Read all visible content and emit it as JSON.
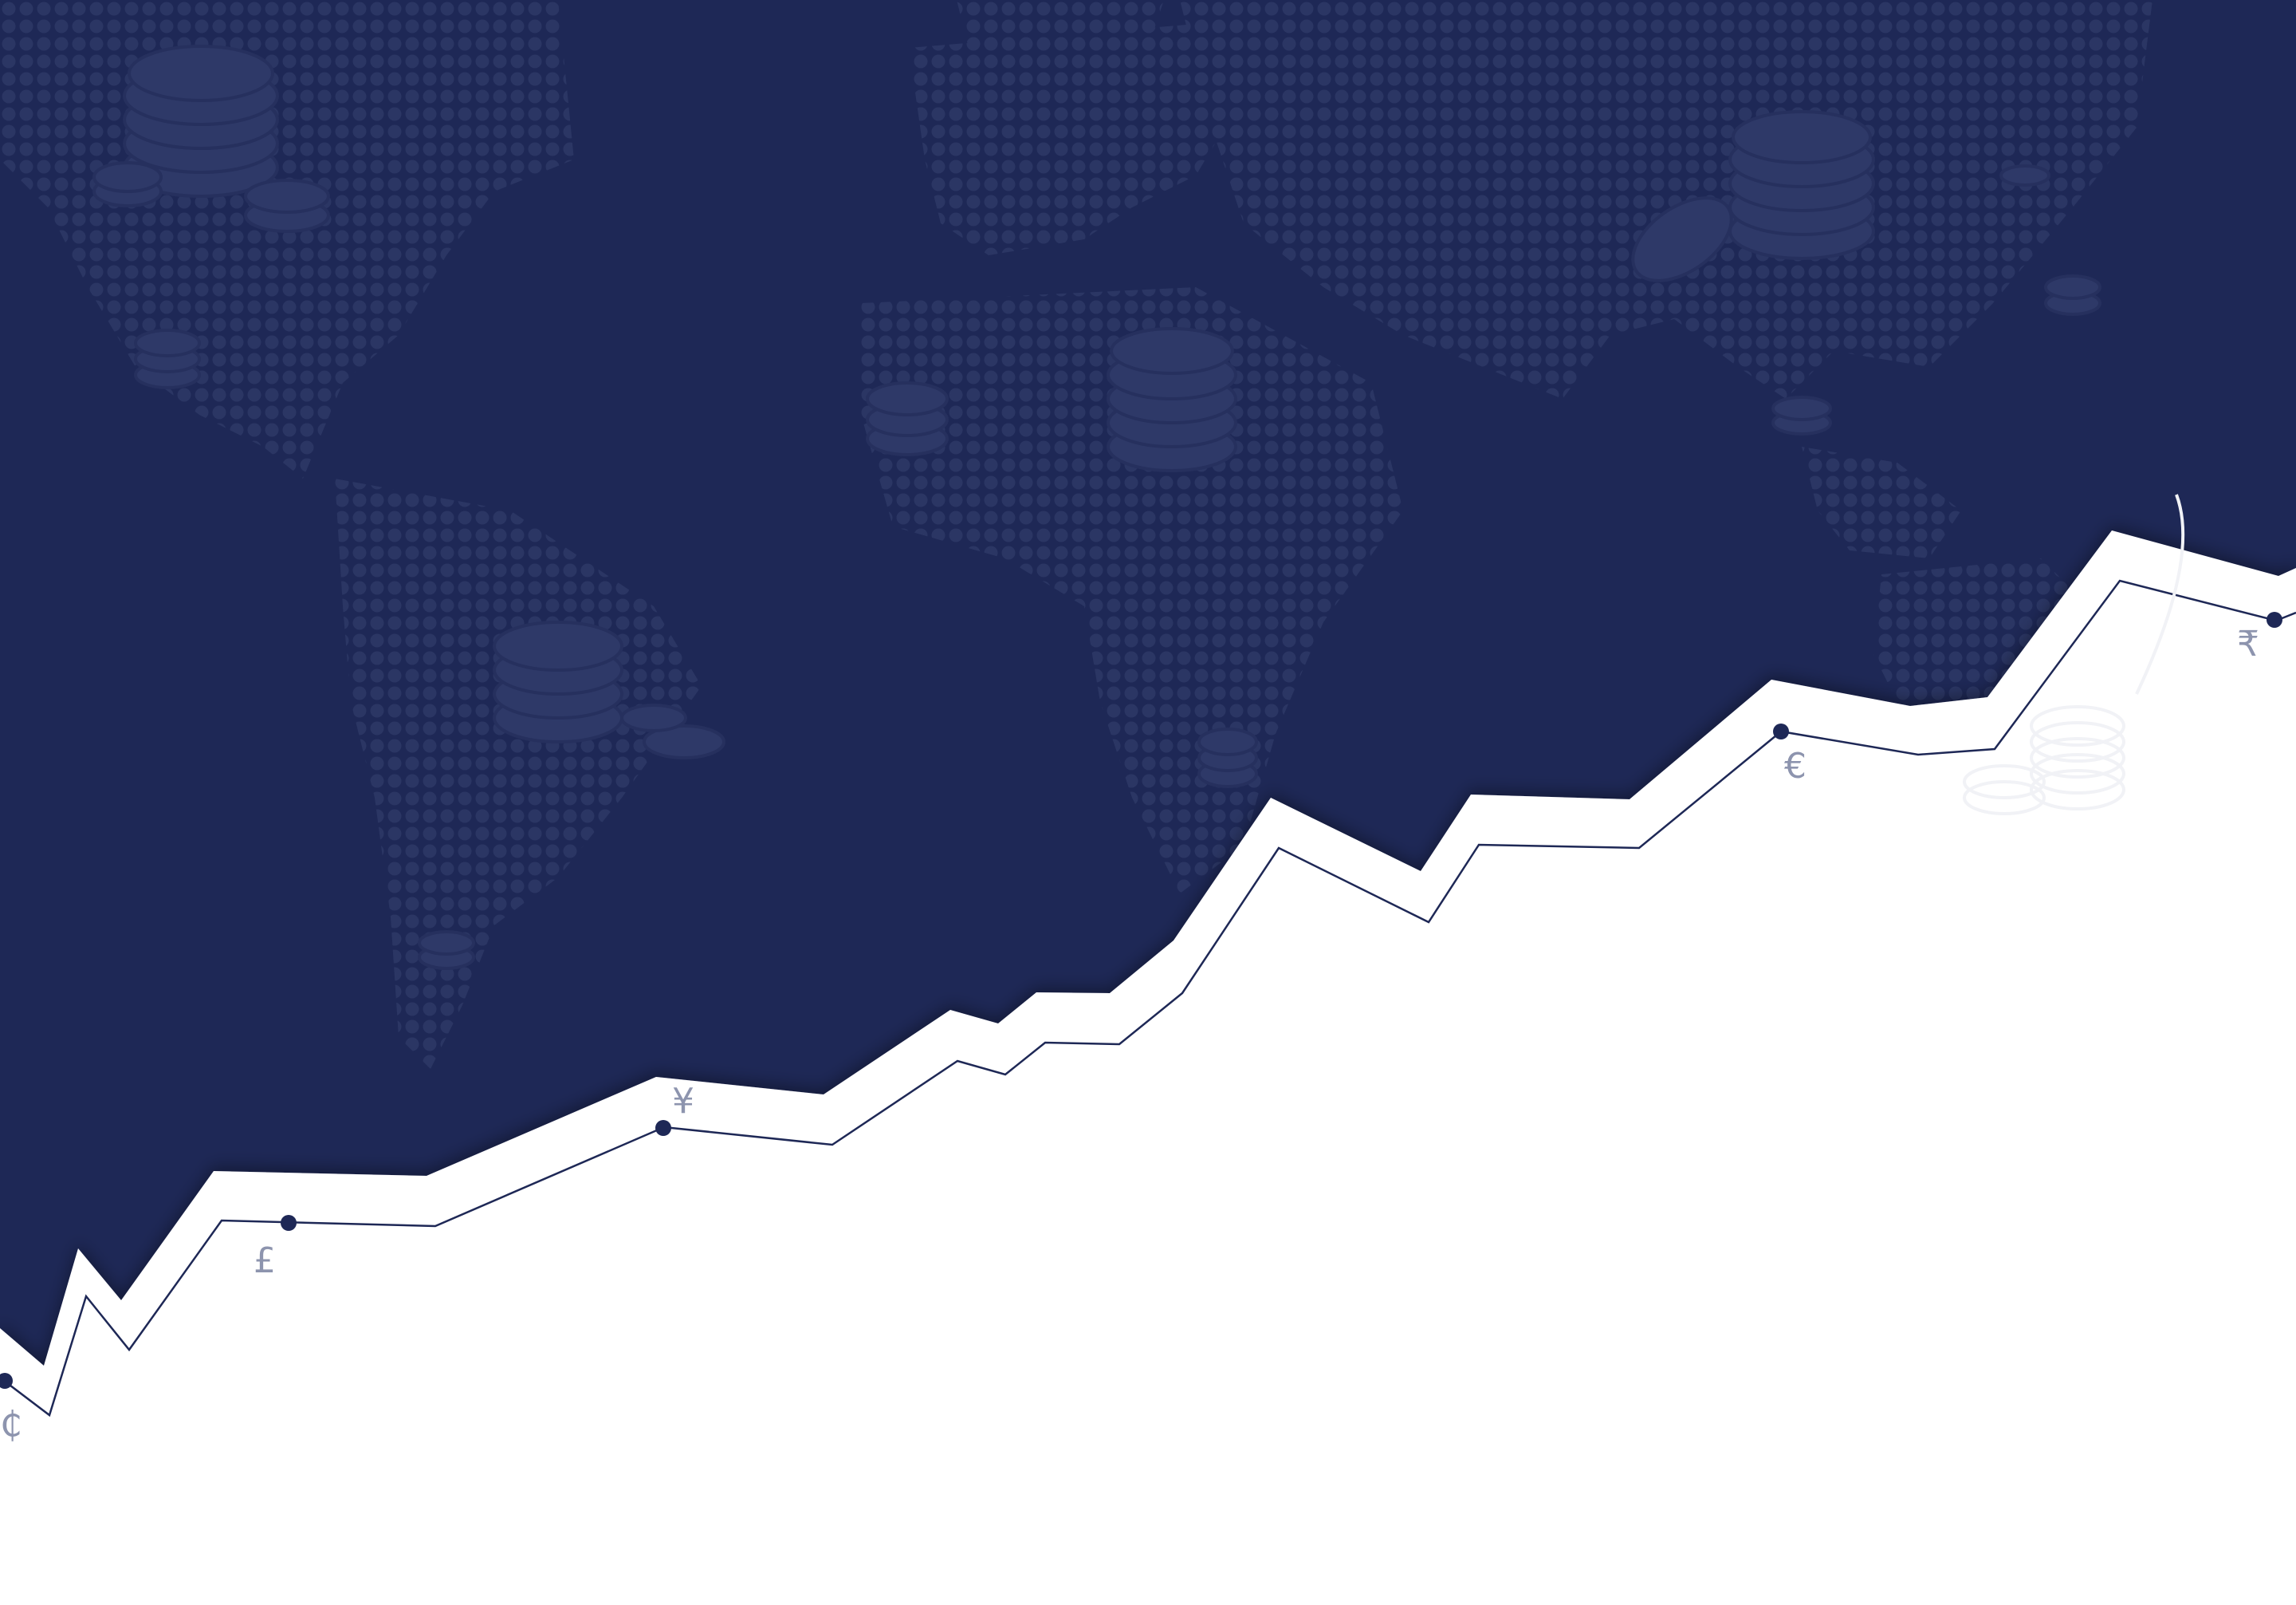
{
  "colors": {
    "navy": "#1e2856",
    "dots": "#2b3664",
    "coins": "#2e3968",
    "white": "#ffffff",
    "symbol_text": "#8d94ae",
    "trend_line": "#1e2856"
  },
  "currency_symbols": [
    "₵",
    "£",
    "¥",
    "€",
    "₹"
  ],
  "icons": {
    "background_map": "world-map-dots-icon",
    "coin_stacks": "coin-stack-icon",
    "markers": "data-point-icon"
  }
}
